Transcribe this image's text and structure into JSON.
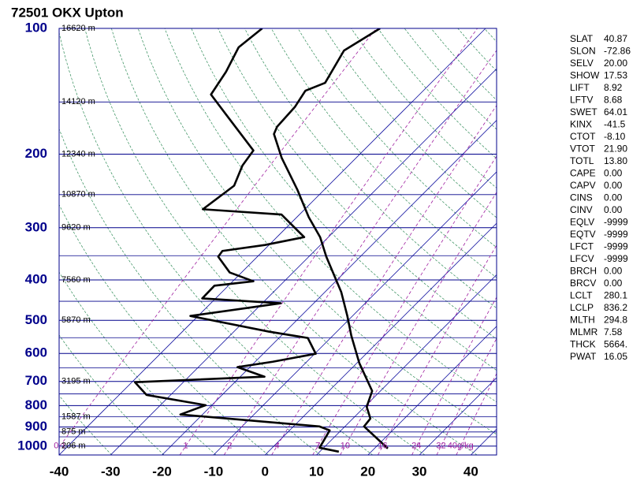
{
  "chart_data": {
    "type": "skewt",
    "title": "72501 OKX Upton",
    "yscale": "log",
    "ylim": [
      1050,
      100
    ],
    "yticks": [
      100,
      200,
      300,
      400,
      500,
      600,
      700,
      800,
      900,
      1000
    ],
    "yminor": [
      150,
      250,
      350,
      450,
      550,
      650,
      750,
      850,
      925,
      950
    ],
    "xlim": [
      -40,
      45
    ],
    "xticks": [
      -40,
      -30,
      -20,
      -10,
      0,
      10,
      20,
      30,
      40
    ],
    "height_labels": [
      {
        "pressure": 100,
        "label": "16620 m"
      },
      {
        "pressure": 150,
        "label": "14120 m"
      },
      {
        "pressure": 200,
        "label": "12340 m"
      },
      {
        "pressure": 250,
        "label": "10870 m"
      },
      {
        "pressure": 300,
        "label": "9620 m"
      },
      {
        "pressure": 400,
        "label": "7560 m"
      },
      {
        "pressure": 500,
        "label": "5870 m"
      },
      {
        "pressure": 700,
        "label": "3195 m"
      },
      {
        "pressure": 850,
        "label": "1587 m"
      },
      {
        "pressure": 925,
        "label": "875 m"
      },
      {
        "pressure": 1000,
        "label": "206 m"
      }
    ],
    "mixing_ratios": [
      0.1,
      1,
      2,
      4,
      7,
      10,
      16,
      24,
      32,
      {
        "value": 40,
        "label": "40g/kg"
      }
    ],
    "temperature": {
      "color": "#000000",
      "pressure": [
        100,
        113,
        135,
        141,
        154,
        172,
        179,
        204,
        243,
        283,
        316,
        352,
        428,
        488,
        544,
        633,
        738,
        805,
        859,
        897,
        1013
      ],
      "values": [
        -60.5,
        -63.2,
        -60.6,
        -62.9,
        -61.8,
        -61.4,
        -60.6,
        -54.5,
        -45.3,
        -37.7,
        -31.6,
        -26.6,
        -16.8,
        -11.0,
        -6.4,
        0.5,
        8.4,
        10.4,
        13.4,
        13.7,
        22.6
      ]
    },
    "dewpoint": {
      "color": "#000000",
      "pressure": [
        100,
        111,
        127,
        144,
        161,
        196,
        213,
        238,
        271,
        279,
        316,
        330,
        341,
        352,
        384,
        403,
        413,
        443,
        455,
        488,
        532,
        551,
        601,
        628,
        647,
        682,
        703,
        754,
        798,
        840,
        897,
        917,
        1009,
        1031
      ],
      "values": [
        -83.4,
        -84.3,
        -82.0,
        -80.5,
        -73.6,
        -61.4,
        -60.6,
        -58.3,
        -59.8,
        -43.5,
        -34.7,
        -40.8,
        -47.9,
        -47.6,
        -42.3,
        -36.0,
        -42.7,
        -42.6,
        -26.4,
        -41.5,
        -23.2,
        -14.4,
        -9.8,
        -16.6,
        -22.4,
        -15.3,
        -39.4,
        -34.7,
        -21.2,
        -24.3,
        5.0,
        7.8,
        9.2,
        13.7
      ]
    },
    "stats": [
      [
        "SLAT",
        "40.87"
      ],
      [
        "SLON",
        "-72.86"
      ],
      [
        "SELV",
        "20.00"
      ],
      [
        "SHOW",
        "17.53"
      ],
      [
        "LIFT",
        "8.92"
      ],
      [
        "LFTV",
        "8.68"
      ],
      [
        "SWET",
        "64.01"
      ],
      [
        "KINX",
        "-41.5"
      ],
      [
        "CTOT",
        "-8.10"
      ],
      [
        "VTOT",
        "21.90"
      ],
      [
        "TOTL",
        "13.80"
      ],
      [
        "CAPE",
        "0.00"
      ],
      [
        "CAPV",
        "0.00"
      ],
      [
        "CINS",
        "0.00"
      ],
      [
        "CINV",
        "0.00"
      ],
      [
        "EQLV",
        "-9999"
      ],
      [
        "EQTV",
        "-9999"
      ],
      [
        "LFCT",
        "-9999"
      ],
      [
        "LFCV",
        "-9999"
      ],
      [
        "BRCH",
        "0.00"
      ],
      [
        "BRCV",
        "0.00"
      ],
      [
        "LCLT",
        "280.1"
      ],
      [
        "LCLP",
        "836.2"
      ],
      [
        "MLTH",
        "294.8"
      ],
      [
        "MLMR",
        "7.58"
      ],
      [
        "THCK",
        "5664."
      ],
      [
        "PWAT",
        "16.05"
      ]
    ]
  }
}
